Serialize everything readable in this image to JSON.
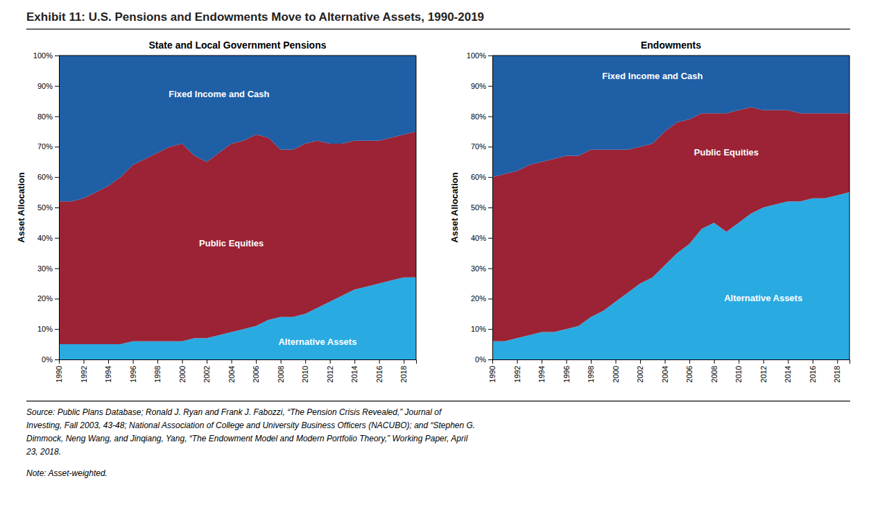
{
  "title": "Exhibit 11: U.S. Pensions and Endowments Move to Alternative Assets, 1990-2019",
  "annotations": [
    "Source: Public Plans Database; Ronald J. Ryan and Frank J. Fabozzi, “The Pension Crisis Revealed,” Journal of",
    "Investing, Fall 2003, 43-48; National Association of College and University Business Officers (NACUBO); and “Stephen G.",
    "Dimmock, Neng Wang, and Jinqiang, Yang, “The Endowment Model and Modern Portfolio Theory,” Working Paper, April",
    "23, 2018.",
    "Note: Asset-weighted."
  ],
  "chart_data": [
    {
      "type": "area",
      "stacked": true,
      "title": "State and Local Government Pensions",
      "ylabel": "Asset Allocation",
      "x": [
        1990,
        1991,
        1992,
        1993,
        1994,
        1995,
        1996,
        1997,
        1998,
        1999,
        2000,
        2001,
        2002,
        2003,
        2004,
        2005,
        2006,
        2007,
        2008,
        2009,
        2010,
        2011,
        2012,
        2013,
        2014,
        2015,
        2016,
        2017,
        2018,
        2019
      ],
      "xlim": [
        1990,
        2019
      ],
      "xticks": [
        1990,
        1992,
        1994,
        1996,
        1998,
        2000,
        2002,
        2004,
        2006,
        2008,
        2010,
        2012,
        2014,
        2016,
        2018
      ],
      "ylim": [
        0,
        1.0
      ],
      "yticks": [
        {
          "value": 0,
          "label": "0%"
        },
        {
          "value": 0.1,
          "label": "10%"
        },
        {
          "value": 0.2,
          "label": "20%"
        },
        {
          "value": 0.3,
          "label": "30%"
        },
        {
          "value": 0.4,
          "label": "40%"
        },
        {
          "value": 0.5,
          "label": "50%"
        },
        {
          "value": 0.6,
          "label": "60%"
        },
        {
          "value": 0.7,
          "label": "70%"
        },
        {
          "value": 0.8,
          "label": "80%"
        },
        {
          "value": 0.9,
          "label": "90%"
        },
        {
          "value": 1.0,
          "label": "100%"
        }
      ],
      "series": [
        {
          "color": "#29ABE2",
          "values": [
            0.05,
            0.05,
            0.05,
            0.05,
            0.05,
            0.05,
            0.06,
            0.06,
            0.06,
            0.06,
            0.06,
            0.07,
            0.07,
            0.08,
            0.09,
            0.1,
            0.11,
            0.13,
            0.14,
            0.14,
            0.15,
            0.17,
            0.19,
            0.21,
            0.23,
            0.24,
            0.25,
            0.26,
            0.27,
            0.27
          ]
        },
        {
          "color": "#9B2335",
          "values": [
            0.47,
            0.47,
            0.48,
            0.5,
            0.52,
            0.55,
            0.58,
            0.6,
            0.62,
            0.64,
            0.65,
            0.6,
            0.58,
            0.6,
            0.62,
            0.62,
            0.63,
            0.6,
            0.55,
            0.55,
            0.56,
            0.55,
            0.52,
            0.5,
            0.49,
            0.48,
            0.47,
            0.47,
            0.47,
            0.48
          ]
        },
        {
          "color": "#1F5FA6",
          "values": [
            0.48,
            0.48,
            0.47,
            0.45,
            0.43,
            0.4,
            0.36,
            0.34,
            0.32,
            0.3,
            0.29,
            0.33,
            0.35,
            0.32,
            0.29,
            0.28,
            0.26,
            0.27,
            0.31,
            0.31,
            0.29,
            0.28,
            0.29,
            0.29,
            0.28,
            0.28,
            0.28,
            0.27,
            0.26,
            0.25
          ]
        }
      ],
      "annotations": [
        {
          "text": "Fixed Income and Cash",
          "x": 2003,
          "y": 0.87
        },
        {
          "text": "Public Equities",
          "x": 2004,
          "y": 0.38
        },
        {
          "text": "Alternative Assets",
          "x": 2011,
          "y": 0.055
        }
      ]
    },
    {
      "type": "area",
      "stacked": true,
      "title": "Endowments",
      "ylabel": "Asset Allocation",
      "x": [
        1990,
        1991,
        1992,
        1993,
        1994,
        1995,
        1996,
        1997,
        1998,
        1999,
        2000,
        2001,
        2002,
        2003,
        2004,
        2005,
        2006,
        2007,
        2008,
        2009,
        2010,
        2011,
        2012,
        2013,
        2014,
        2015,
        2016,
        2017,
        2018,
        2019
      ],
      "xlim": [
        1990,
        2019
      ],
      "xticks": [
        1990,
        1992,
        1994,
        1996,
        1998,
        2000,
        2002,
        2004,
        2006,
        2008,
        2010,
        2012,
        2014,
        2016,
        2018
      ],
      "ylim": [
        0,
        1.0
      ],
      "yticks": [
        {
          "value": 0,
          "label": "0%"
        },
        {
          "value": 0.1,
          "label": "10%"
        },
        {
          "value": 0.2,
          "label": "20%"
        },
        {
          "value": 0.3,
          "label": "30%"
        },
        {
          "value": 0.4,
          "label": "40%"
        },
        {
          "value": 0.5,
          "label": "50%"
        },
        {
          "value": 0.6,
          "label": "60%"
        },
        {
          "value": 0.7,
          "label": "70%"
        },
        {
          "value": 0.8,
          "label": "80%"
        },
        {
          "value": 0.9,
          "label": "90%"
        },
        {
          "value": 1.0,
          "label": "100%"
        }
      ],
      "series": [
        {
          "color": "#29ABE2",
          "values": [
            0.06,
            0.06,
            0.07,
            0.08,
            0.09,
            0.09,
            0.1,
            0.11,
            0.14,
            0.16,
            0.19,
            0.22,
            0.25,
            0.27,
            0.31,
            0.35,
            0.38,
            0.43,
            0.45,
            0.42,
            0.45,
            0.48,
            0.5,
            0.51,
            0.52,
            0.52,
            0.53,
            0.53,
            0.54,
            0.55
          ]
        },
        {
          "color": "#9B2335",
          "values": [
            0.54,
            0.55,
            0.55,
            0.56,
            0.56,
            0.57,
            0.57,
            0.56,
            0.55,
            0.53,
            0.5,
            0.47,
            0.45,
            0.44,
            0.44,
            0.43,
            0.41,
            0.38,
            0.36,
            0.39,
            0.37,
            0.35,
            0.32,
            0.31,
            0.3,
            0.29,
            0.28,
            0.28,
            0.27,
            0.26
          ]
        },
        {
          "color": "#1F5FA6",
          "values": [
            0.4,
            0.39,
            0.38,
            0.36,
            0.35,
            0.34,
            0.33,
            0.33,
            0.31,
            0.31,
            0.31,
            0.31,
            0.3,
            0.29,
            0.25,
            0.22,
            0.21,
            0.19,
            0.19,
            0.19,
            0.18,
            0.17,
            0.18,
            0.18,
            0.18,
            0.19,
            0.19,
            0.19,
            0.19,
            0.19
          ]
        }
      ],
      "annotations": [
        {
          "text": "Fixed Income and Cash",
          "x": 2003,
          "y": 0.93
        },
        {
          "text": "Public Equities",
          "x": 2009,
          "y": 0.68
        },
        {
          "text": "Alternative Assets",
          "x": 2012,
          "y": 0.2
        }
      ]
    }
  ]
}
